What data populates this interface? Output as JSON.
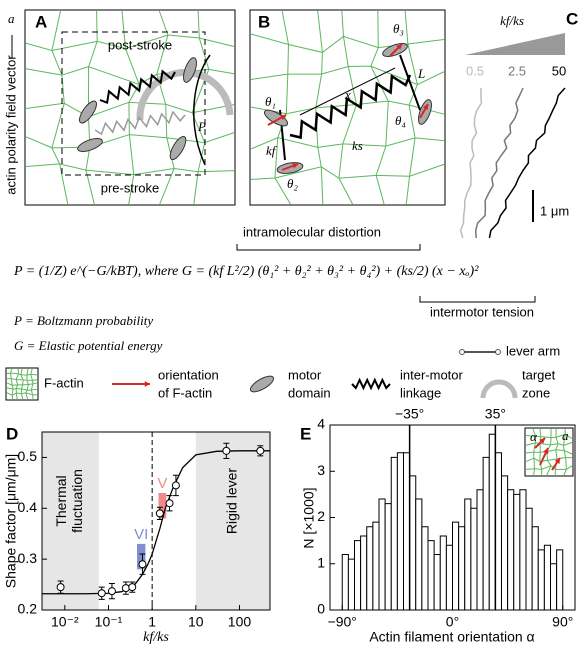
{
  "panel_a": {
    "label": "A",
    "post_stroke": "post-stroke",
    "pre_stroke": "pre-stroke",
    "P": "P",
    "axis_label": "actin polarity field vector",
    "vector": "a⃗"
  },
  "panel_b": {
    "label": "B",
    "theta1": "θ₁",
    "theta2": "θ₂",
    "theta3": "θ₃",
    "theta4": "θ₄",
    "x": "x",
    "L": "L",
    "ks": "ks",
    "kf": "kf"
  },
  "panel_c": {
    "label": "C",
    "title": "kf/ks",
    "levels": [
      0.5,
      2.5,
      50
    ],
    "scale_bar": "1 μm"
  },
  "equation": {
    "distortion_label": "intramolecular distortion",
    "formula": "P = (1/Z) e^(−G/kBT),  where G = (kf L²/2) (θ₁² + θ₂² + θ₃² + θ₄²) + (ks/2) (x − xₒ)²",
    "tension_label": "intermotor tension",
    "p_def": "P = Boltzmann probability",
    "g_def": "G = Elastic potential energy",
    "lever_arm": "lever arm"
  },
  "legend": {
    "f_actin": "F-actin",
    "orientation": [
      "orientation",
      "of F-actin"
    ],
    "motor": [
      "motor",
      "domain"
    ],
    "linkage": [
      "inter-motor",
      "linkage"
    ],
    "target": [
      "target",
      "zone"
    ]
  },
  "chart_data": [
    {
      "type": "scatter",
      "label": "D",
      "xlabel": "kf/ks",
      "ylabel": "Shape factor [μm/μm]",
      "xscale": "log",
      "xlim": [
        0.003,
        500
      ],
      "xticks": [
        {
          "value": 0.01,
          "label": "10⁻²"
        },
        {
          "value": 0.1,
          "label": "10⁻¹"
        },
        1,
        10,
        100
      ],
      "ylim": [
        0.2,
        0.55
      ],
      "yticks": [
        0.2,
        0.3,
        0.4,
        0.5
      ],
      "series": [
        {
          "color": "#000000",
          "x": [
            0.008,
            0.07,
            0.12,
            0.25,
            0.35,
            0.6,
            1.5,
            2.5,
            3.5,
            50,
            300
          ],
          "y": [
            0.245,
            0.233,
            0.237,
            0.243,
            0.245,
            0.29,
            0.39,
            0.41,
            0.445,
            0.513,
            0.513
          ],
          "err": [
            0.012,
            0.012,
            0.015,
            0.012,
            0.01,
            0.02,
            0.012,
            0.015,
            0.02,
            0.015,
            0.01
          ]
        }
      ],
      "fit": {
        "x": [
          0.003,
          0.01,
          0.03,
          0.1,
          0.2,
          0.4,
          0.6,
          0.8,
          1,
          1.5,
          2,
          3,
          5,
          10,
          30,
          100,
          500
        ],
        "y": [
          0.232,
          0.232,
          0.232,
          0.233,
          0.236,
          0.25,
          0.27,
          0.29,
          0.31,
          0.36,
          0.4,
          0.44,
          0.48,
          0.505,
          0.512,
          0.513,
          0.513
        ]
      },
      "vline": 1,
      "regions": [
        {
          "label": [
            "Thermal",
            "fluctuation"
          ],
          "x": [
            0.003,
            0.06
          ]
        },
        {
          "label": [
            "Rigid lever"
          ],
          "x": [
            10,
            500
          ]
        }
      ],
      "boxes": [
        {
          "label": "VI",
          "color": "#7f8fd0",
          "x": [
            0.45,
            0.7
          ],
          "y": [
            0.28,
            0.33
          ]
        },
        {
          "label": "V",
          "color": "#f08a8a",
          "x": [
            1.4,
            2.1
          ],
          "y": [
            0.38,
            0.43
          ]
        }
      ]
    },
    {
      "type": "histogram",
      "label": "E",
      "xlabel": "Actin filament orientation α",
      "ylabel": "N [×1000]",
      "color": "#ffffff",
      "bins": [
        -90,
        -85,
        -80,
        -75,
        -70,
        -65,
        -60,
        -55,
        -50,
        -45,
        -40,
        -35,
        -30,
        -25,
        -20,
        -15,
        -10,
        -5,
        0,
        5,
        10,
        15,
        20,
        25,
        30,
        35,
        40,
        45,
        50,
        55,
        60,
        65,
        70,
        75,
        80,
        85,
        90
      ],
      "counts": [
        1.2,
        1.1,
        1.5,
        1.6,
        1.8,
        1.9,
        2.4,
        2.3,
        3.3,
        3.4,
        3.4,
        2.9,
        2.4,
        1.8,
        1.5,
        1.2,
        1.6,
        1.4,
        1.9,
        1.8,
        2.4,
        2.2,
        2.6,
        3.3,
        3.8,
        3.4,
        2.9,
        2.6,
        2.5,
        2.6,
        2.2,
        1.8,
        1.3,
        1.4,
        1.0,
        1.3
      ],
      "xlim": [
        -100,
        100
      ],
      "xticks": [
        {
          "value": -90,
          "label": "−90°"
        },
        {
          "value": 0,
          "label": "0°"
        },
        {
          "value": 90,
          "label": "90°"
        }
      ],
      "ylim": [
        0,
        4
      ],
      "yticks": [
        0,
        1,
        2,
        3,
        4
      ],
      "vlines": [
        {
          "value": -35,
          "label": "−35°"
        },
        {
          "value": 35,
          "label": "35°"
        }
      ],
      "inset": {
        "alpha": "α",
        "vector": "a⃗"
      }
    }
  ]
}
